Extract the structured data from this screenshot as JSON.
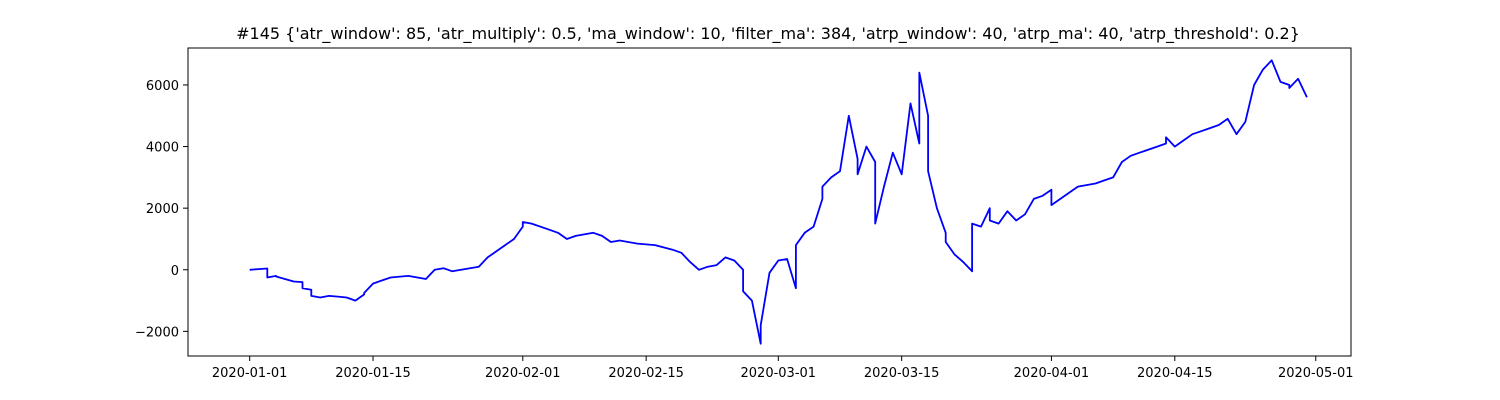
{
  "chart_data": {
    "type": "line",
    "title": "#145 {'atr_window': 85, 'atr_multiply': 0.5, 'ma_window': 10, 'filter_ma': 384, 'atrp_window': 40, 'atrp_ma': 40, 'atrp_threshold': 0.2}",
    "xlabel": "",
    "ylabel": "",
    "x_type": "date",
    "xlim": [
      "2019-12-25",
      "2020-05-05"
    ],
    "ylim": [
      -2800,
      7200
    ],
    "grid": false,
    "line_color": "#0000ff",
    "x_ticks": [
      "2020-01-01",
      "2020-01-15",
      "2020-02-01",
      "2020-02-15",
      "2020-03-01",
      "2020-03-15",
      "2020-04-01",
      "2020-04-15",
      "2020-05-01"
    ],
    "y_ticks": [
      -2000,
      0,
      2000,
      4000,
      6000
    ],
    "series": [
      {
        "x": [
          "2020-01-01",
          "2020-01-02",
          "2020-01-03",
          "2020-01-03",
          "2020-01-04",
          "2020-01-04",
          "2020-01-05",
          "2020-01-06",
          "2020-01-07",
          "2020-01-07",
          "2020-01-08",
          "2020-01-08",
          "2020-01-09",
          "2020-01-10",
          "2020-01-11",
          "2020-01-12",
          "2020-01-13",
          "2020-01-14",
          "2020-01-14",
          "2020-01-15",
          "2020-01-16",
          "2020-01-17",
          "2020-01-19",
          "2020-01-21",
          "2020-01-22",
          "2020-01-23",
          "2020-01-24",
          "2020-01-25",
          "2020-01-27",
          "2020-01-28",
          "2020-01-29",
          "2020-01-30",
          "2020-01-31",
          "2020-02-01",
          "2020-02-01",
          "2020-02-02",
          "2020-02-04",
          "2020-02-05",
          "2020-02-06",
          "2020-02-07",
          "2020-02-09",
          "2020-02-10",
          "2020-02-11",
          "2020-02-12",
          "2020-02-14",
          "2020-02-16",
          "2020-02-18",
          "2020-02-19",
          "2020-02-20",
          "2020-02-21",
          "2020-02-22",
          "2020-02-23",
          "2020-02-24",
          "2020-02-25",
          "2020-02-26",
          "2020-02-26",
          "2020-02-27",
          "2020-02-28",
          "2020-02-28",
          "2020-02-29",
          "2020-03-01",
          "2020-03-02",
          "2020-03-03",
          "2020-03-03",
          "2020-03-04",
          "2020-03-05",
          "2020-03-06",
          "2020-03-06",
          "2020-03-07",
          "2020-03-08",
          "2020-03-09",
          "2020-03-10",
          "2020-03-10",
          "2020-03-11",
          "2020-03-12",
          "2020-03-12",
          "2020-03-13",
          "2020-03-14",
          "2020-03-15",
          "2020-03-16",
          "2020-03-17",
          "2020-03-17",
          "2020-03-18",
          "2020-03-18",
          "2020-03-19",
          "2020-03-20",
          "2020-03-20",
          "2020-03-21",
          "2020-03-22",
          "2020-03-23",
          "2020-03-23",
          "2020-03-24",
          "2020-03-25",
          "2020-03-25",
          "2020-03-26",
          "2020-03-27",
          "2020-03-28",
          "2020-03-29",
          "2020-03-30",
          "2020-03-31",
          "2020-04-01",
          "2020-04-01",
          "2020-04-02",
          "2020-04-03",
          "2020-04-04",
          "2020-04-06",
          "2020-04-07",
          "2020-04-08",
          "2020-04-09",
          "2020-04-10",
          "2020-04-11",
          "2020-04-13",
          "2020-04-14",
          "2020-04-14",
          "2020-04-15",
          "2020-04-16",
          "2020-04-17",
          "2020-04-18",
          "2020-04-19",
          "2020-04-20",
          "2020-04-21",
          "2020-04-22",
          "2020-04-23",
          "2020-04-24",
          "2020-04-25",
          "2020-04-26",
          "2020-04-27",
          "2020-04-28",
          "2020-04-28",
          "2020-04-29",
          "2020-04-30"
        ],
        "y": [
          0,
          20,
          40,
          -250,
          -200,
          -220,
          -300,
          -380,
          -400,
          -600,
          -650,
          -850,
          -900,
          -850,
          -870,
          -900,
          -1000,
          -800,
          -750,
          -450,
          -350,
          -250,
          -200,
          -300,
          0,
          50,
          -50,
          0,
          100,
          400,
          600,
          800,
          1000,
          1400,
          1550,
          1500,
          1300,
          1200,
          1000,
          1100,
          1200,
          1100,
          900,
          950,
          850,
          800,
          650,
          550,
          250,
          0,
          100,
          150,
          400,
          300,
          0,
          -700,
          -1000,
          -2400,
          -1800,
          -100,
          300,
          350,
          -600,
          800,
          1200,
          1400,
          2300,
          2700,
          3000,
          3200,
          5000,
          3600,
          3100,
          4000,
          3500,
          1500,
          2700,
          3800,
          3100,
          5400,
          4100,
          6400,
          5000,
          3200,
          2000,
          1200,
          900,
          500,
          250,
          -50,
          1500,
          1400,
          2000,
          1600,
          1500,
          1900,
          1600,
          1800,
          2300,
          2400,
          2600,
          2100,
          2300,
          2500,
          2700,
          2800,
          2900,
          3000,
          3500,
          3700,
          3800,
          4000,
          4100,
          4300,
          4000,
          4200,
          4400,
          4500,
          4600,
          4700,
          4900,
          4400,
          4800,
          6000,
          6500,
          6800,
          6100,
          6000,
          5900,
          6200,
          5600
        ]
      }
    ]
  }
}
